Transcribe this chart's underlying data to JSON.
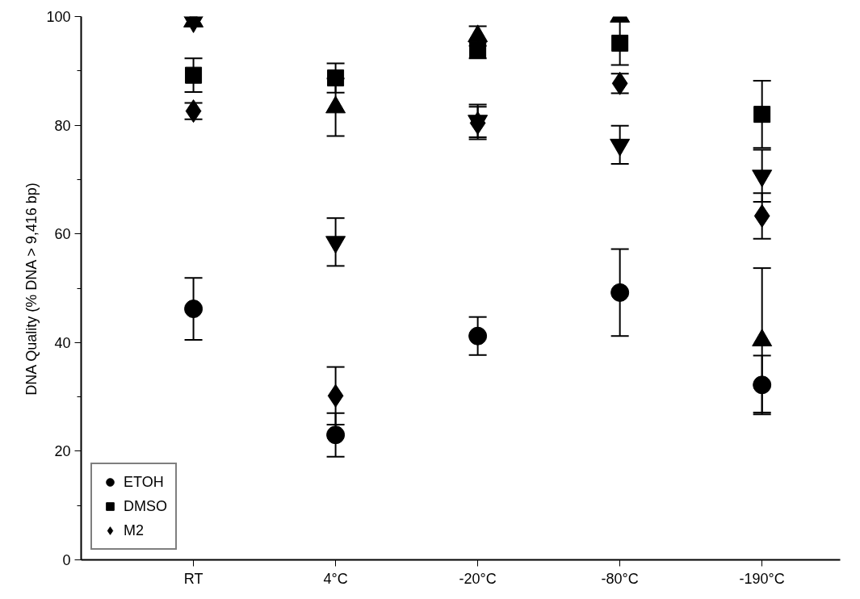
{
  "chart_data": {
    "type": "scatter",
    "ylabel": "DNA Quality (% DNA > 9,416 bp)",
    "categories": [
      "RT",
      "4°C",
      "-20°C",
      "-80°C",
      "-190°C"
    ],
    "ylim": [
      0,
      100
    ],
    "yticks": [
      0,
      20,
      40,
      60,
      80,
      100
    ],
    "grid": false,
    "legend": "bottom left",
    "series": [
      {
        "name": "ETOH",
        "color": "#000000",
        "marker": "circle",
        "values": [
          46.2,
          23.0,
          41.2,
          49.2,
          32.2
        ],
        "errors": [
          5.7,
          4.0,
          3.5,
          8.0,
          5.4
        ]
      },
      {
        "name": "DMSO",
        "color": "#000000",
        "marker": "square",
        "values": [
          89.2,
          88.7,
          93.8,
          95.1,
          82.0
        ],
        "errors": [
          3.1,
          2.7,
          1.5,
          4.0,
          6.2
        ]
      },
      {
        "color": "#000000",
        "marker": "triangle",
        "values": [
          99.1,
          83.3,
          96.4,
          100,
          40.4
        ],
        "errors": [
          null,
          5.3,
          1.8,
          null,
          13.3
        ]
      },
      {
        "color": "#000000",
        "values": [
          99.1,
          58.5,
          80.8,
          76.4,
          70.7
        ],
        "errors": [
          null,
          4.4,
          3.0,
          3.5,
          4.8
        ]
      },
      {
        "name": "M2",
        "color": "#000000",
        "marker": "diamond",
        "values": [
          82.6,
          30.2,
          80.4,
          87.7,
          63.3
        ],
        "errors": [
          1.5,
          5.3,
          3.0,
          1.8,
          4.2
        ]
      }
    ]
  }
}
